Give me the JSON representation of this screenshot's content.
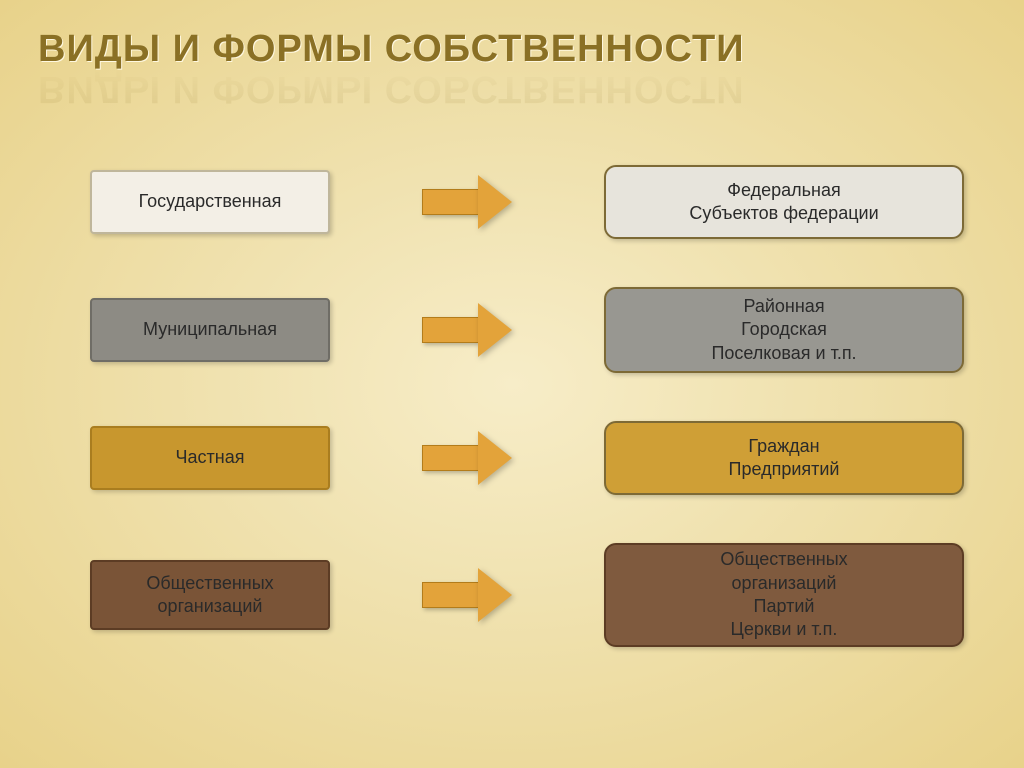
{
  "title": "ВИДЫ И ФОРМЫ СОБСТВЕННОСТИ",
  "rows": [
    {
      "left": "Государственная",
      "right": "Федеральная\nСубъектов федерации",
      "left_bg": "#f3efe6",
      "left_border": "#bfb69b",
      "right_bg": "#e7e4dc",
      "right_border": "#7d6a36",
      "left_height": 64,
      "right_height": 74,
      "row_gap": 48
    },
    {
      "left": "Муниципальная",
      "right": "Районная\nГородская\nПоселковая и т.п.",
      "left_bg": "#8d8b84",
      "left_border": "#6f6d66",
      "right_bg": "#989791",
      "right_border": "#7d6a36",
      "left_height": 64,
      "right_height": 86,
      "row_gap": 48
    },
    {
      "left": "Частная",
      "right": "Граждан\nПредприятий",
      "left_bg": "#c8972e",
      "left_border": "#a97d1f",
      "right_bg": "#cf9f36",
      "right_border": "#7d6a36",
      "left_height": 64,
      "right_height": 74,
      "row_gap": 48
    },
    {
      "left": "Общественных\nорганизаций",
      "right": "Общественных\nорганизаций\nПартий\nЦеркви  и т.п.",
      "left_bg": "#7a5437",
      "left_border": "#5c3c24",
      "right_bg": "#7f5a3e",
      "right_border": "#5c3c24",
      "left_height": 70,
      "right_height": 104,
      "row_gap": 0
    }
  ],
  "arrow": {
    "fill": "#e3a33a",
    "border": "#b37c1a"
  },
  "typography": {
    "title_fontsize": 38,
    "box_fontsize": 18
  }
}
